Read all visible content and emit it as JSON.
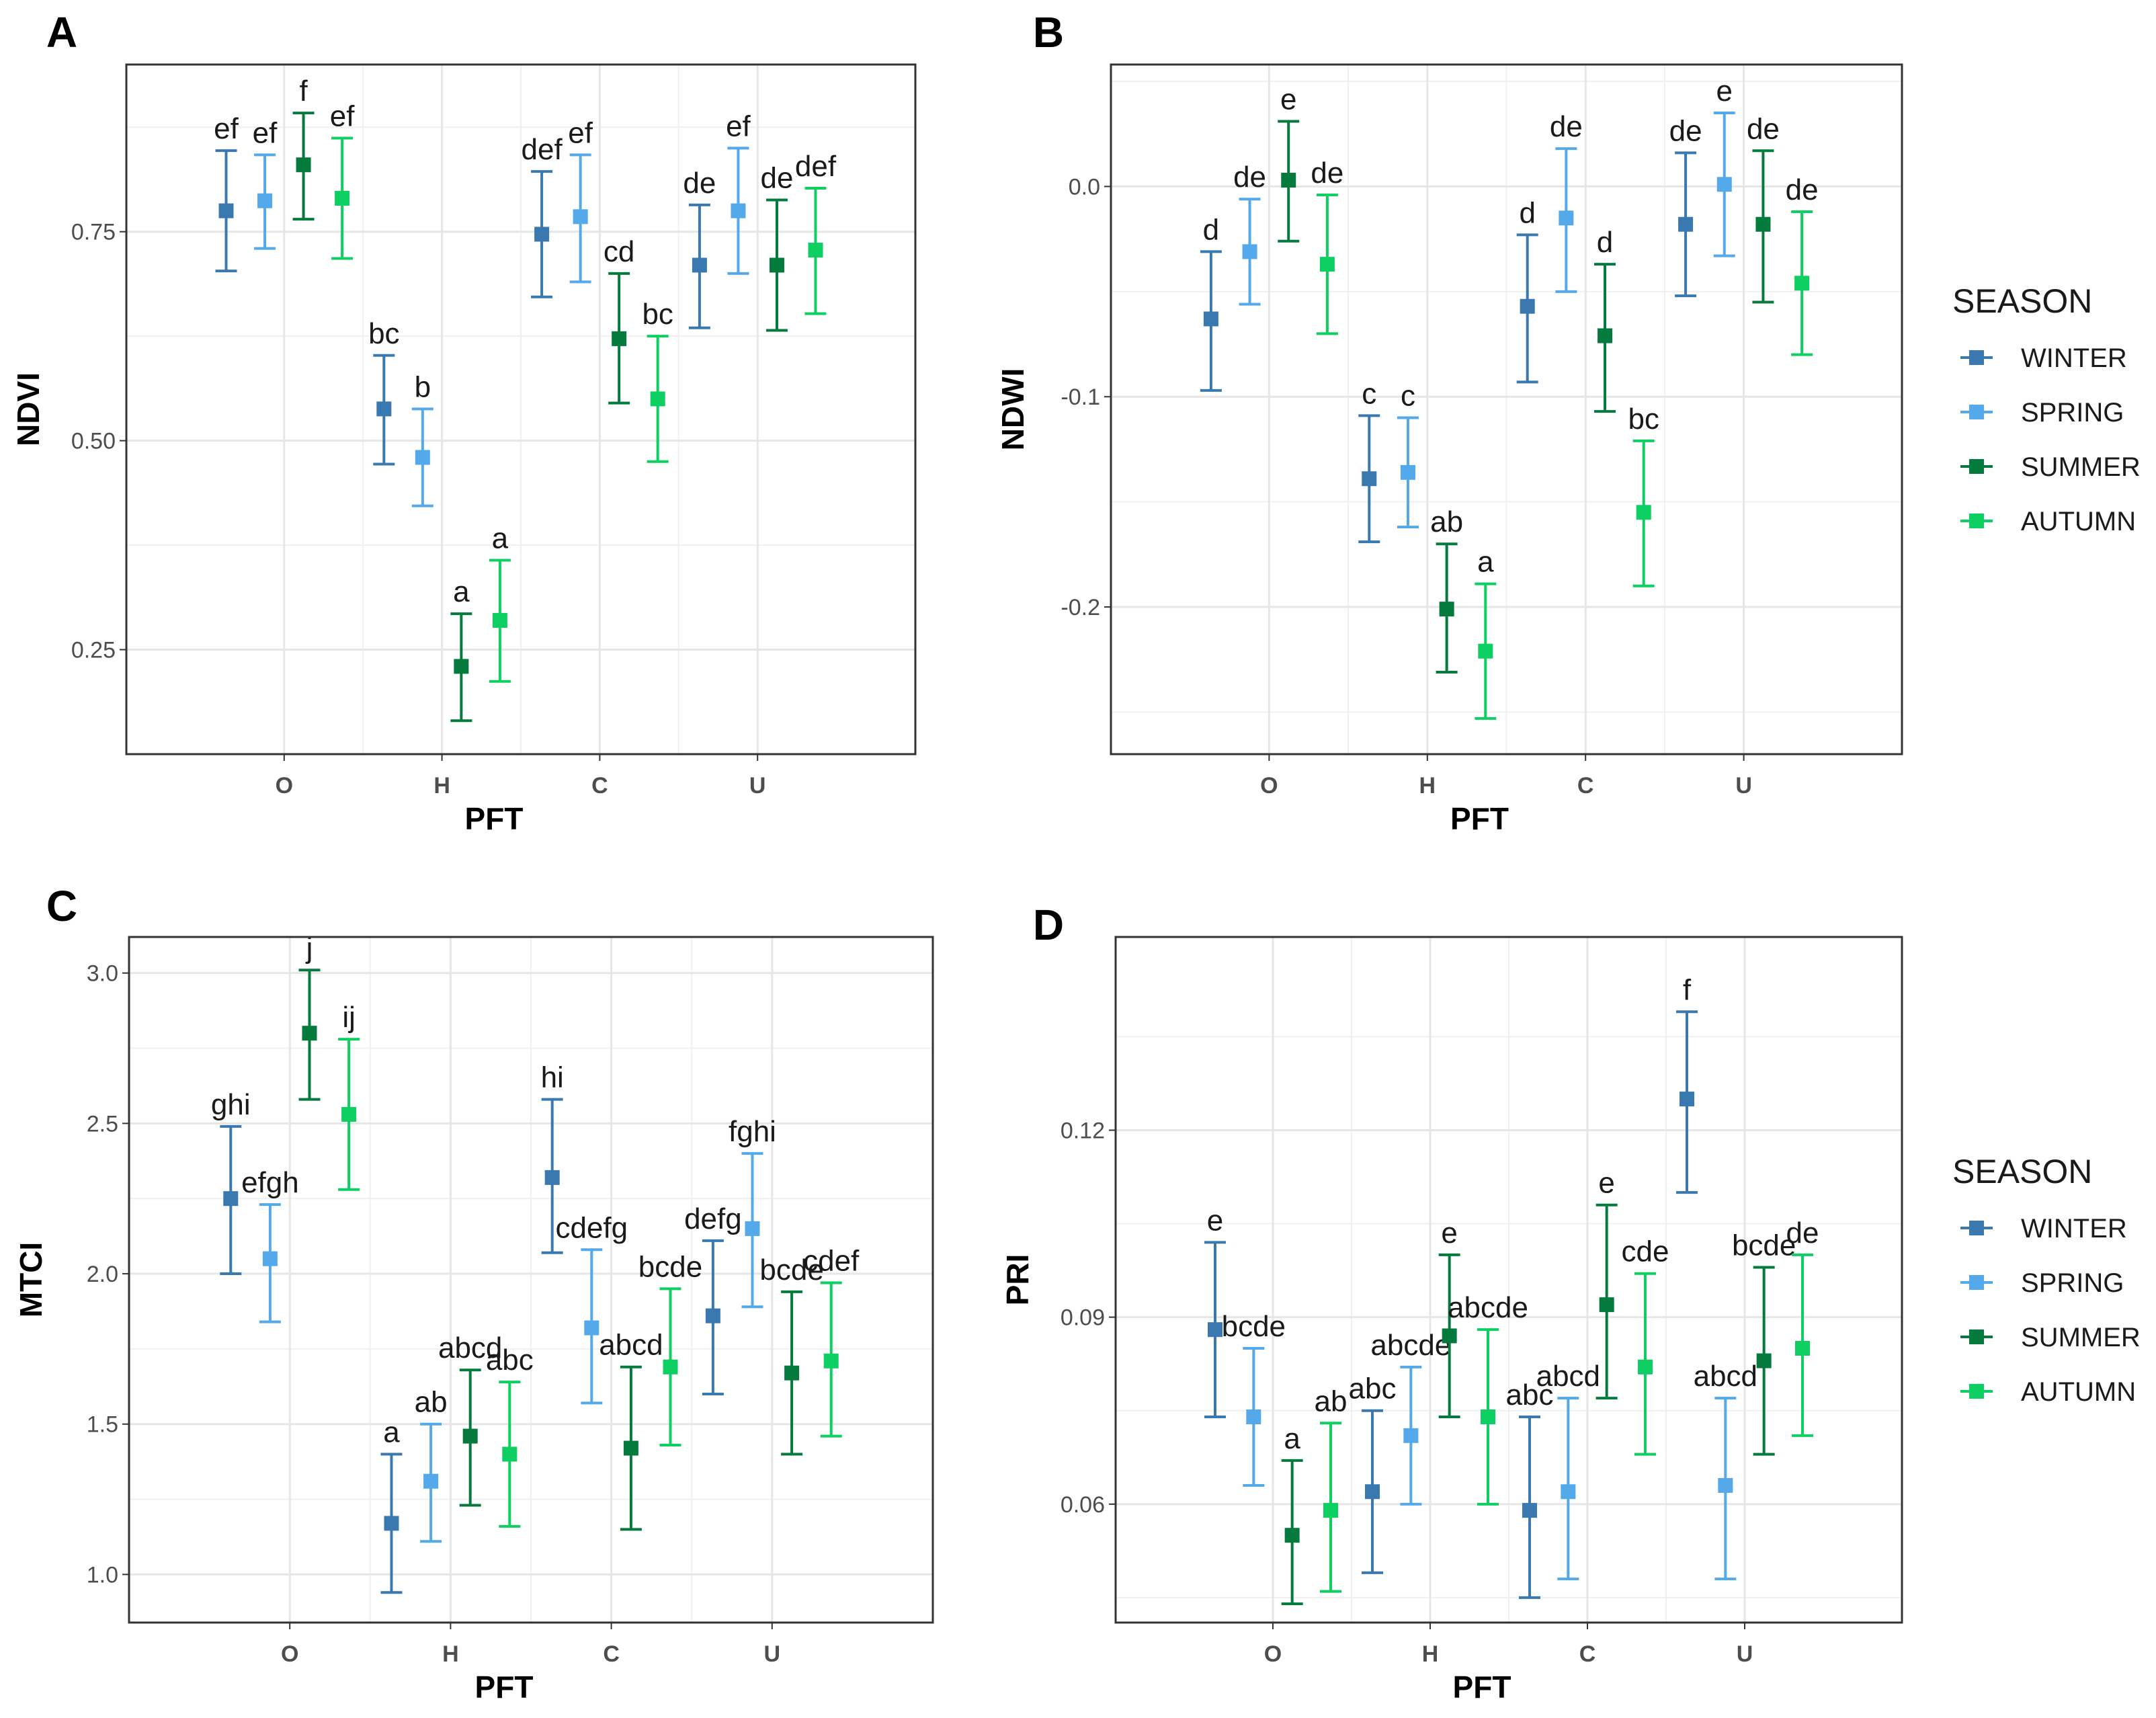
{
  "legend": {
    "title": "SEASON",
    "items": [
      {
        "name": "WINTER",
        "color": "#3a78b0"
      },
      {
        "name": "SPRING",
        "color": "#54a9ea"
      },
      {
        "name": "SUMMER",
        "color": "#047a3c"
      },
      {
        "name": "AUTUMN",
        "color": "#0ecf62"
      }
    ]
  },
  "chart_data": [
    {
      "panel": "A",
      "type": "scatter",
      "xlabel": "PFT",
      "ylabel": "NDVI",
      "categories": [
        "O",
        "H",
        "C",
        "U"
      ],
      "ylim": [
        0.125,
        0.95
      ],
      "yticks": [
        0.25,
        0.5,
        0.75
      ],
      "ytick_labels": [
        "0.25",
        "0.50",
        "0.75"
      ],
      "series": [
        {
          "name": "WINTER",
          "means": [
            0.775,
            0.538,
            0.747,
            0.71
          ],
          "lower": [
            0.703,
            0.472,
            0.672,
            0.635
          ],
          "upper": [
            0.847,
            0.602,
            0.822,
            0.782
          ],
          "labels": [
            "ef",
            "bc",
            "def",
            "de"
          ]
        },
        {
          "name": "SPRING",
          "means": [
            0.787,
            0.48,
            0.768,
            0.775
          ],
          "lower": [
            0.73,
            0.422,
            0.69,
            0.7
          ],
          "upper": [
            0.842,
            0.538,
            0.842,
            0.85
          ],
          "labels": [
            "ef",
            "b",
            "ef",
            "ef"
          ]
        },
        {
          "name": "SUMMER",
          "means": [
            0.83,
            0.23,
            0.622,
            0.71
          ],
          "lower": [
            0.765,
            0.165,
            0.545,
            0.632
          ],
          "upper": [
            0.892,
            0.293,
            0.7,
            0.788
          ],
          "labels": [
            "f",
            "a",
            "cd",
            "de"
          ]
        },
        {
          "name": "AUTUMN",
          "means": [
            0.79,
            0.285,
            0.55,
            0.728
          ],
          "lower": [
            0.718,
            0.212,
            0.475,
            0.652
          ],
          "upper": [
            0.862,
            0.357,
            0.625,
            0.802
          ],
          "labels": [
            "ef",
            "a",
            "bc",
            "def"
          ]
        }
      ]
    },
    {
      "panel": "B",
      "type": "scatter",
      "xlabel": "PFT",
      "ylabel": "NDWI",
      "categories": [
        "O",
        "H",
        "C",
        "U"
      ],
      "ylim": [
        -0.27,
        0.058
      ],
      "yticks": [
        -0.2,
        -0.1,
        0.0
      ],
      "ytick_labels": [
        "-0.2",
        "-0.1",
        "0.0"
      ],
      "series": [
        {
          "name": "WINTER",
          "means": [
            -0.063,
            -0.139,
            -0.057,
            -0.018
          ],
          "lower": [
            -0.097,
            -0.169,
            -0.093,
            -0.052
          ],
          "upper": [
            -0.031,
            -0.109,
            -0.023,
            0.016
          ],
          "labels": [
            "d",
            "c",
            "d",
            "de"
          ]
        },
        {
          "name": "SPRING",
          "means": [
            -0.031,
            -0.136,
            -0.015,
            0.001
          ],
          "lower": [
            -0.056,
            -0.162,
            -0.05,
            -0.033
          ],
          "upper": [
            -0.006,
            -0.11,
            0.018,
            0.035
          ],
          "labels": [
            "de",
            "c",
            "de",
            "e"
          ]
        },
        {
          "name": "SUMMER",
          "means": [
            0.003,
            -0.201,
            -0.071,
            -0.018
          ],
          "lower": [
            -0.026,
            -0.231,
            -0.107,
            -0.055
          ],
          "upper": [
            0.031,
            -0.17,
            -0.037,
            0.017
          ],
          "labels": [
            "e",
            "ab",
            "d",
            "de"
          ]
        },
        {
          "name": "AUTUMN",
          "means": [
            -0.037,
            -0.221,
            -0.155,
            -0.046
          ],
          "lower": [
            -0.07,
            -0.253,
            -0.19,
            -0.08
          ],
          "upper": [
            -0.004,
            -0.189,
            -0.121,
            -0.012
          ],
          "labels": [
            "de",
            "a",
            "bc",
            "de"
          ]
        }
      ]
    },
    {
      "panel": "C",
      "type": "scatter",
      "xlabel": "PFT",
      "ylabel": "MTCI",
      "categories": [
        "O",
        "H",
        "C",
        "U"
      ],
      "ylim": [
        0.84,
        3.12
      ],
      "yticks": [
        1.0,
        1.5,
        2.0,
        2.5,
        3.0
      ],
      "ytick_labels": [
        "1.0",
        "1.5",
        "2.0",
        "2.5",
        "3.0"
      ],
      "series": [
        {
          "name": "WINTER",
          "means": [
            2.25,
            1.17,
            2.32,
            1.86
          ],
          "lower": [
            2.0,
            0.94,
            2.07,
            1.6
          ],
          "upper": [
            2.49,
            1.4,
            2.58,
            2.11
          ],
          "labels": [
            "ghi",
            "a",
            "hi",
            "defg"
          ]
        },
        {
          "name": "SPRING",
          "means": [
            2.05,
            1.31,
            1.82,
            2.15
          ],
          "lower": [
            1.84,
            1.11,
            1.57,
            1.89
          ],
          "upper": [
            2.23,
            1.5,
            2.08,
            2.4
          ],
          "labels": [
            "efgh",
            "ab",
            "cdefg",
            "fghi"
          ]
        },
        {
          "name": "SUMMER",
          "means": [
            2.8,
            1.46,
            1.42,
            1.67
          ],
          "lower": [
            2.58,
            1.23,
            1.15,
            1.4
          ],
          "upper": [
            3.01,
            1.68,
            1.69,
            1.94
          ],
          "labels": [
            "j",
            "abcd",
            "abcd",
            "bcde"
          ]
        },
        {
          "name": "AUTUMN",
          "means": [
            2.53,
            1.4,
            1.69,
            1.71
          ],
          "lower": [
            2.28,
            1.16,
            1.43,
            1.46
          ],
          "upper": [
            2.78,
            1.64,
            1.95,
            1.97
          ],
          "labels": [
            "ij",
            "abc",
            "bcde",
            "cdef"
          ]
        }
      ]
    },
    {
      "panel": "D",
      "type": "scatter",
      "xlabel": "PFT",
      "ylabel": "PRI",
      "categories": [
        "O",
        "H",
        "C",
        "U"
      ],
      "ylim": [
        0.041,
        0.151
      ],
      "yticks": [
        0.06,
        0.09,
        0.12
      ],
      "ytick_labels": [
        "0.06",
        "0.09",
        "0.12"
      ],
      "series": [
        {
          "name": "WINTER",
          "means": [
            0.088,
            0.062,
            0.059,
            0.125
          ],
          "lower": [
            0.074,
            0.049,
            0.045,
            0.11
          ],
          "upper": [
            0.102,
            0.075,
            0.074,
            0.139
          ],
          "labels": [
            "e",
            "abc",
            "abc",
            "f"
          ]
        },
        {
          "name": "SPRING",
          "means": [
            0.074,
            0.071,
            0.062,
            0.063
          ],
          "lower": [
            0.063,
            0.06,
            0.048,
            0.048
          ],
          "upper": [
            0.085,
            0.082,
            0.077,
            0.077
          ],
          "labels": [
            "bcde",
            "abcde",
            "abcd",
            "abcd"
          ]
        },
        {
          "name": "SUMMER",
          "means": [
            0.055,
            0.087,
            0.092,
            0.083
          ],
          "lower": [
            0.044,
            0.074,
            0.077,
            0.068
          ],
          "upper": [
            0.067,
            0.1,
            0.108,
            0.098
          ],
          "labels": [
            "a",
            "e",
            "e",
            "bcde"
          ]
        },
        {
          "name": "AUTUMN",
          "means": [
            0.059,
            0.074,
            0.082,
            0.085
          ],
          "lower": [
            0.046,
            0.06,
            0.068,
            0.071
          ],
          "upper": [
            0.073,
            0.088,
            0.097,
            0.1
          ],
          "labels": [
            "ab",
            "abcde",
            "cde",
            "de"
          ]
        }
      ]
    }
  ]
}
